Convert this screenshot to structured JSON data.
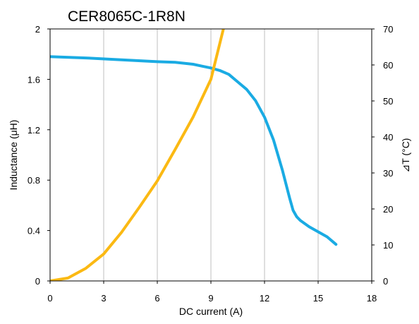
{
  "chart_data": {
    "type": "line",
    "title": "CER8065C-1R8N",
    "xlabel": "DC current (A)",
    "ylabel": "Inductance (μH)",
    "y2label": "⊿T (°C)",
    "xlim": [
      0,
      18
    ],
    "ylim": [
      0,
      2
    ],
    "y2lim": [
      0,
      70
    ],
    "x_ticks": [
      "0",
      "3",
      "6",
      "9",
      "12",
      "15",
      "18"
    ],
    "y_ticks": [
      "0",
      "0.4",
      "0.8",
      "1.2",
      "1.6",
      "2"
    ],
    "y2_ticks": [
      "0",
      "10",
      "20",
      "30",
      "40",
      "50",
      "60",
      "70"
    ],
    "grid": "vertical",
    "series": [
      {
        "color": "#1aabe3",
        "axis": "left",
        "x": [
          0,
          2,
          4,
          6,
          7,
          8,
          8.5,
          9,
          9.5,
          10,
          10.5,
          11,
          11.5,
          12,
          12.5,
          13,
          13.4,
          13.6,
          13.8,
          14,
          14.5,
          15,
          15.5,
          16
        ],
        "y": [
          1.78,
          1.77,
          1.755,
          1.74,
          1.735,
          1.72,
          1.705,
          1.69,
          1.67,
          1.64,
          1.58,
          1.52,
          1.43,
          1.3,
          1.12,
          0.88,
          0.66,
          0.56,
          0.51,
          0.48,
          0.43,
          0.39,
          0.35,
          0.29
        ]
      },
      {
        "color": "#fbb913",
        "axis": "right",
        "x": [
          0,
          1,
          2,
          3,
          4,
          5,
          6,
          7,
          8,
          9,
          9.7
        ],
        "y": [
          0,
          0.8,
          3.5,
          7.5,
          13.5,
          20.5,
          27.8,
          36.5,
          45.5,
          56,
          70
        ]
      }
    ]
  }
}
